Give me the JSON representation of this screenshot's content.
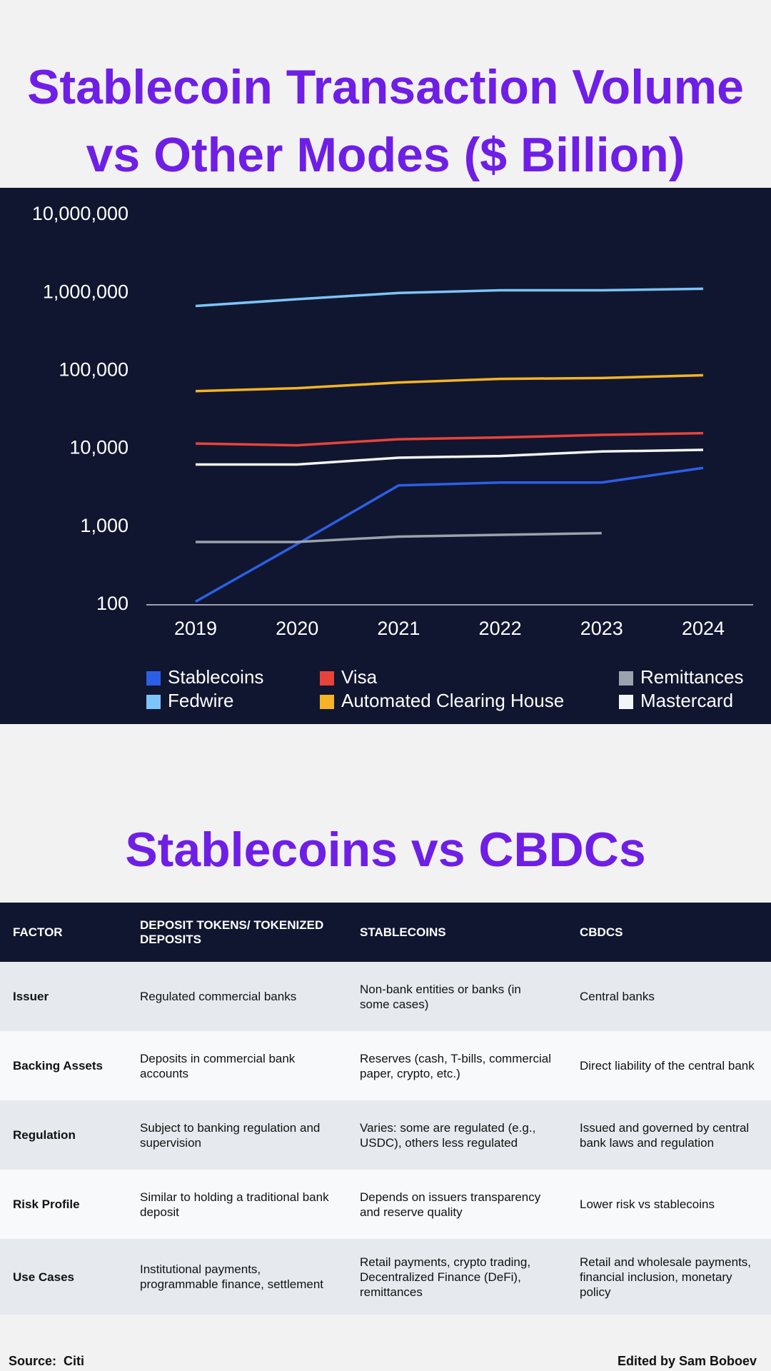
{
  "chart_data": {
    "type": "line",
    "title": "Stablecoin Transaction Volume vs Other Modes ($ Billion)",
    "categories": [
      "2019",
      "2020",
      "2021",
      "2022",
      "2023",
      "2024"
    ],
    "yscale": "log",
    "ylim": [
      100,
      10000000
    ],
    "yticks": [
      100,
      {
        "value": 1000,
        "label": "1,000"
      },
      {
        "value": 10000,
        "label": "10,000"
      },
      {
        "value": 100000,
        "label": "100,000"
      },
      {
        "value": 1000000,
        "label": "1,000,000"
      },
      {
        "value": 10000000,
        "label": "10,000,000"
      }
    ],
    "grid": false,
    "legend": "bottom",
    "series": [
      {
        "name": "Stablecoins",
        "color": "#2c5fe6",
        "values": [
          110,
          600,
          3400,
          3700,
          3700,
          5700
        ]
      },
      {
        "name": "Fedwire",
        "color": "#7cc4fa",
        "values": [
          680000,
          830000,
          1000000,
          1080000,
          1080000,
          1130000
        ]
      },
      {
        "name": "Visa",
        "color": "#e8433a",
        "values": [
          11700,
          11100,
          13300,
          14000,
          15100,
          15900
        ]
      },
      {
        "name": "Automated Clearing House",
        "color": "#f5b325",
        "values": [
          55000,
          60000,
          71000,
          79000,
          81000,
          88000
        ]
      },
      {
        "name": "Remittances",
        "color": "#9aa3ad",
        "values": [
          640,
          640,
          750,
          790,
          830,
          null
        ]
      },
      {
        "name": "Mastercard",
        "color": "#f2f4f8",
        "values": [
          6300,
          6300,
          7700,
          8100,
          9250,
          9700
        ]
      }
    ]
  },
  "comparison": {
    "title": "Stablecoins vs CBDCs",
    "table": {
      "columns": [
        "FACTOR",
        "DEPOSIT TOKENS/ TOKENIZED DEPOSITS",
        "STABLECOINS",
        "CBDCS"
      ],
      "rows": [
        [
          "Issuer",
          "Regulated commercial banks",
          "Non-bank entities or banks (in some cases)",
          "Central banks"
        ],
        [
          "Backing Assets",
          "Deposits in commercial bank accounts",
          "Reserves (cash, T-bills, commercial paper, crypto, etc.)",
          "Direct liability of the central bank"
        ],
        [
          "Regulation",
          "Subject to banking regulation and supervision",
          "Varies: some are regulated (e.g., USDC), others less regulated",
          "Issued and governed by central bank laws and regulation"
        ],
        [
          "Risk Profile",
          "Similar to holding a traditional bank deposit",
          "Depends on issuers transparency and reserve quality",
          "Lower risk vs stablecoins"
        ],
        [
          "Use Cases",
          "Institutional payments, programmable finance, settlement",
          "Retail payments, crypto trading, Decentralized Finance (DeFi), remittances",
          "Retail and wholesale payments, financial inclusion, monetary policy"
        ]
      ]
    }
  },
  "footer": {
    "source": "Source:  Citi",
    "credit": "Edited by Sam Boboev"
  }
}
